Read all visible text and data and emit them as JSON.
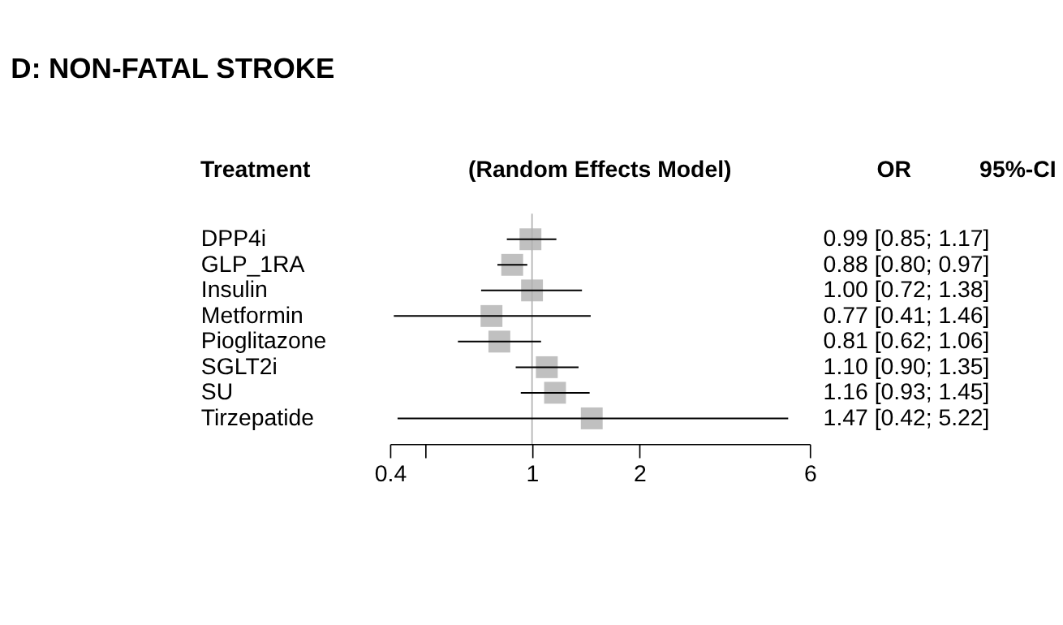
{
  "chart_data": {
    "type": "scatter",
    "orientation": "horizontal",
    "title": "D: NON-FATAL STROKE",
    "annotations": [
      "Treatment",
      "(Random Effects Model)",
      "OR",
      "95%-CI"
    ],
    "categories": [
      "DPP4i",
      "GLP_1RA",
      "Insulin",
      "Metformin",
      "Pioglitazone",
      "SGLT2i",
      "SU",
      "Tirzepatide"
    ],
    "values": [
      0.99,
      0.88,
      1.0,
      0.77,
      0.81,
      1.1,
      1.16,
      1.47
    ],
    "errors": [
      [
        0.85,
        1.17
      ],
      [
        0.8,
        0.97
      ],
      [
        0.72,
        1.38
      ],
      [
        0.41,
        1.46
      ],
      [
        0.62,
        1.06
      ],
      [
        0.9,
        1.35
      ],
      [
        0.93,
        1.45
      ],
      [
        0.42,
        5.22
      ]
    ],
    "value_labels": [
      "0.99 [0.85; 1.17]",
      "0.88 [0.80; 0.97]",
      "1.00 [0.72; 1.38]",
      "0.77 [0.41; 1.46]",
      "0.81 [0.62; 1.06]",
      "1.10 [0.90; 1.35]",
      "1.16 [0.93; 1.45]",
      "1.47 [0.42; 5.22]"
    ],
    "color": "#c0c0c0",
    "marker": "square",
    "log": "x",
    "xlim": [
      0.4,
      6
    ],
    "xticks": [
      0.4,
      {
        "value": 0.5,
        "label": null
      },
      1,
      2,
      6
    ],
    "ref_lines": [
      {
        "axis": "x",
        "value": 1,
        "color": "#b0b0b0"
      }
    ],
    "grid": false
  }
}
